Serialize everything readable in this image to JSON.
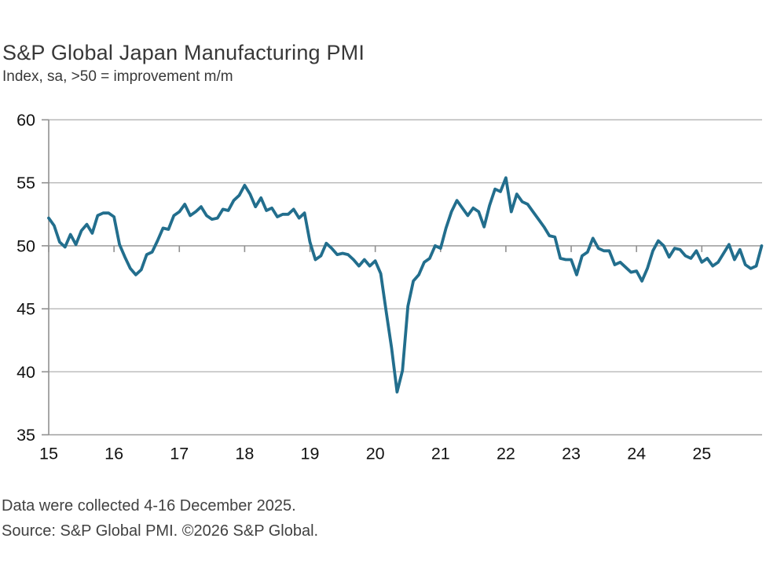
{
  "header": {
    "title": "S&P Global Japan Manufacturing PMI",
    "subtitle": "Index, sa, >50 = improvement m/m"
  },
  "footer": {
    "line1": "Data were collected 4-16 December 2025.",
    "line2": "Source: S&P Global PMI. ©2026 S&P Global."
  },
  "chart_data": {
    "type": "line",
    "title": "S&P Global Japan Manufacturing PMI",
    "subtitle": "Index, sa, >50 = improvement m/m",
    "x_start": "2015-01",
    "x_end": "2025-12",
    "frequency": "monthly",
    "x_tick_labels": [
      "15",
      "16",
      "17",
      "18",
      "19",
      "20",
      "21",
      "22",
      "23",
      "24",
      "25"
    ],
    "y_ticks": [
      35,
      40,
      45,
      50,
      55,
      60
    ],
    "ylim": [
      35,
      60
    ],
    "baseline": 50,
    "grid": true,
    "legend": "none",
    "line_color": "#226e8d",
    "series": [
      {
        "name": "Japan Manufacturing PMI",
        "values": [
          52.2,
          51.6,
          50.3,
          49.9,
          50.9,
          50.1,
          51.2,
          51.7,
          51.0,
          52.4,
          52.6,
          52.6,
          52.3,
          50.1,
          49.1,
          48.2,
          47.7,
          48.1,
          49.3,
          49.5,
          50.4,
          51.4,
          51.3,
          52.4,
          52.7,
          53.3,
          52.4,
          52.7,
          53.1,
          52.4,
          52.1,
          52.2,
          52.9,
          52.8,
          53.6,
          54.0,
          54.8,
          54.1,
          53.1,
          53.8,
          52.8,
          53.0,
          52.3,
          52.5,
          52.5,
          52.9,
          52.2,
          52.6,
          50.3,
          48.9,
          49.2,
          50.2,
          49.8,
          49.3,
          49.4,
          49.3,
          48.9,
          48.4,
          48.9,
          48.4,
          48.8,
          47.8,
          44.8,
          41.9,
          38.4,
          40.1,
          45.2,
          47.2,
          47.7,
          48.7,
          49.0,
          50.0,
          49.8,
          51.4,
          52.7,
          53.6,
          53.0,
          52.4,
          53.0,
          52.7,
          51.5,
          53.2,
          54.5,
          54.3,
          55.4,
          52.7,
          54.1,
          53.5,
          53.3,
          52.7,
          52.1,
          51.5,
          50.8,
          50.7,
          49.0,
          48.9,
          48.9,
          47.7,
          49.2,
          49.5,
          50.6,
          49.8,
          49.6,
          49.6,
          48.5,
          48.7,
          48.3,
          47.9,
          48.0,
          47.2,
          48.2,
          49.6,
          50.4,
          50.0,
          49.1,
          49.8,
          49.7,
          49.2,
          49.0,
          49.6,
          48.7,
          49.0,
          48.4,
          48.7,
          49.4,
          50.1,
          48.9,
          49.7,
          48.5,
          48.2,
          48.4,
          50.0
        ]
      }
    ],
    "colors": {
      "line": "#226e8d",
      "gridline": "#b8b8b8",
      "baseline_gridline": "#909090",
      "axis": "#909090",
      "bottom_border": "#9e9e9e",
      "tick_label": "#111111",
      "title_text": "#383838",
      "footer_text": "#414141",
      "background": "#ffffff"
    }
  }
}
